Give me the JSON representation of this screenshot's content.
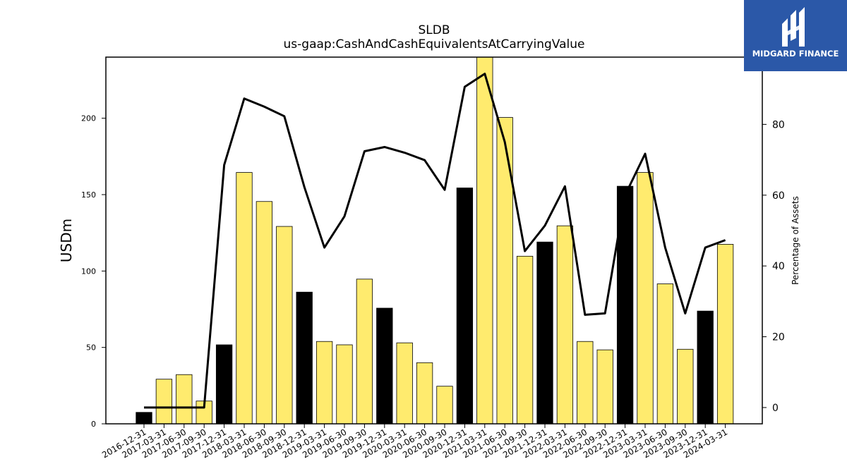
{
  "chart_data": {
    "type": "bar",
    "title": "SLDB",
    "subtitle": "us-gaap:CashAndCashEquivalentsAtCarryingValue",
    "ylabel": "USDm",
    "y2label": "Percentage of Assets",
    "ylim": [
      0,
      240
    ],
    "y2lim": [
      -4.6,
      99
    ],
    "yticks": [
      0,
      50,
      100,
      150,
      200
    ],
    "y2ticks": [
      0,
      20,
      40,
      60,
      80
    ],
    "categories": [
      "2016-12-31",
      "2017-03-31",
      "2017-06-30",
      "2017-09-30",
      "2017-12-31",
      "2018-03-31",
      "2018-06-30",
      "2018-09-30",
      "2018-12-31",
      "2019-03-31",
      "2019-06-30",
      "2019-09-30",
      "2019-12-31",
      "2020-03-31",
      "2020-06-30",
      "2020-09-30",
      "2020-12-31",
      "2021-03-31",
      "2021-06-30",
      "2021-09-30",
      "2021-12-31",
      "2022-03-31",
      "2022-06-30",
      "2022-09-30",
      "2022-12-31",
      "2023-03-31",
      "2023-06-30",
      "2023-09-30",
      "2023-12-31",
      "2024-03-31"
    ],
    "series": [
      {
        "type": "bar",
        "values": [
          7.5,
          29.2,
          32.2,
          14.9,
          51.7,
          164.5,
          145.5,
          129.2,
          86.2,
          53.9,
          51.7,
          94.7,
          75.7,
          53.0,
          40.0,
          24.6,
          154.4,
          240,
          200.5,
          109.7,
          119.0,
          129.6,
          53.9,
          48.4,
          155.5,
          164.5,
          91.6,
          48.8,
          73.8,
          117.5
        ],
        "colors": [
          "#000000",
          "#ffeb6e",
          "#ffeb6e",
          "#ffeb6e",
          "#000000",
          "#ffeb6e",
          "#ffeb6e",
          "#ffeb6e",
          "#000000",
          "#ffeb6e",
          "#ffeb6e",
          "#ffeb6e",
          "#000000",
          "#ffeb6e",
          "#ffeb6e",
          "#ffeb6e",
          "#000000",
          "#ffeb6e",
          "#ffeb6e",
          "#ffeb6e",
          "#000000",
          "#ffeb6e",
          "#ffeb6e",
          "#ffeb6e",
          "#000000",
          "#ffeb6e",
          "#ffeb6e",
          "#ffeb6e",
          "#000000",
          "#ffeb6e"
        ]
      },
      {
        "type": "line",
        "axis": "right",
        "color": "#000000",
        "values": [
          0,
          0,
          0,
          0,
          68.5,
          87.3,
          85.0,
          82.3,
          62.3,
          45.2,
          54.0,
          72.4,
          73.6,
          72.0,
          69.9,
          61.5,
          90.6,
          94.3,
          75.0,
          44.2,
          51.4,
          62.5,
          26.2,
          26.6,
          60.0,
          71.7,
          45.2,
          26.6,
          45.2,
          47.3
        ]
      }
    ],
    "grid": false,
    "legend": "none"
  },
  "logo": {
    "text": "MIDGARD FINANCE",
    "icon": "midgard-logo-icon",
    "bg": "#2b58a8"
  }
}
